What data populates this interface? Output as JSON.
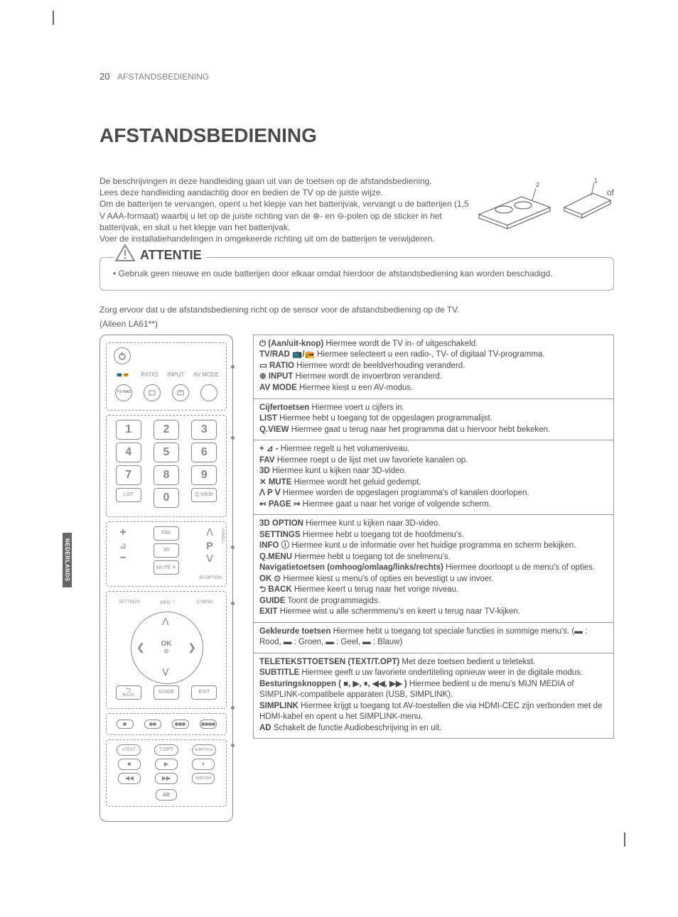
{
  "page_number": "20",
  "header_section": "AFSTANDSBEDIENING",
  "main_title": "AFSTANDSBEDIENING",
  "side_tab": "NEDERLANDS",
  "of_text": "of",
  "intro_text": "De beschrijvingen in deze handleiding gaan uit van de toetsen op de afstandsbediening.\nLees deze handleiding aandachtig door en bedien de TV op de juiste wijze.\nOm de batterijen te vervangen, opent u het klepje van het batterijvak, vervangt u de batterijen (1,5 V AAA-formaat) waarbij u let op de juiste richting van de ⊕- en ⊖-polen op de sticker in het batterijvak, en sluit u het klepje van het batterijvak.\nVoer de installatiehandelingen in omgekeerde richting uit om de batterijen te verwijderen.",
  "attention": {
    "label": "ATTENTIE",
    "body": "Gebruik geen nieuwe en oude batterijen door elkaar omdat hierdoor de afstandsbediening kan worden beschadigd."
  },
  "note1": "Zorg ervoor dat u de afstandsbediening richt op de sensor voor de afstandsbediening op de TV.",
  "note2": "(Alleen LA61**)",
  "remote_labels": {
    "tvrad": "TV/\nRAD",
    "ratio": "RATIO",
    "input": "INPUT",
    "avmode": "AV MODE",
    "list": "LIST",
    "qview": "Q.VIEW",
    "fav": "FAV",
    "threeD": "3D",
    "p": "P",
    "mute": "MUTE ✕",
    "threeD_option": "3D OPTION",
    "settings": "SETTINGS",
    "info": "INFO ⓘ",
    "qmenu": "Q.MENU",
    "ok": "OK",
    "back": "BACK",
    "guide": "GUIDE",
    "exit": "EXIT",
    "text": "TEXT",
    "topt": "T.OPT",
    "subtitle": "SUBTITLE",
    "simplink": "SIMPLINK",
    "ad": "AD"
  },
  "desc_boxes": [
    {
      "lines": [
        {
          "b": "⏻ (Aan/uit-knop)",
          "t": "   Hiermee wordt de TV in- of uitgeschakeld."
        },
        {
          "b": "TV/RAD 📺/📻",
          "t": "   Hiermee selecteert u een radio-, TV- of digitaal TV-programma."
        },
        {
          "b": "▭ RATIO",
          "t": "   Hiermee wordt de beeldverhouding veranderd."
        },
        {
          "b": "⊕ INPUT",
          "t": "   Hiermee wordt de invoerbron veranderd."
        },
        {
          "b": "AV MODE",
          "t": "   Hiermee kiest u een AV-modus."
        }
      ]
    },
    {
      "lines": [
        {
          "b": "Cijfertoetsen",
          "t": "   Hiermee voert u cijfers in."
        },
        {
          "b": "LIST",
          "t": "   Hiermee hebt u toegang tot de opgeslagen programmalijst."
        },
        {
          "b": "Q.VIEW",
          "t": "   Hiermee gaat u terug naar het programma dat u hiervoor hebt bekeken."
        }
      ]
    },
    {
      "lines": [
        {
          "b": "+ ⊿ -",
          "t": "   Hiermee regelt u het volumeniveau."
        },
        {
          "b": "FAV",
          "t": "   Hiermee roept u de lijst met uw favoriete kanalen op."
        },
        {
          "b": "3D",
          "t": "   Hiermee kunt u kijken naar 3D-video."
        },
        {
          "b": "✕ MUTE",
          "t": "   Hiermee wordt het geluid gedempt."
        },
        {
          "b": "ꓥ P ꓦ",
          "t": "   Hiermee worden de opgeslagen programma's of kanalen doorlopen."
        },
        {
          "b": "↢ PAGE ↣",
          "t": "   Hiermee gaat u naar het vorige of volgende scherm."
        }
      ]
    },
    {
      "lines": [
        {
          "b": "3D OPTION",
          "t": "   Hiermee kunt u kijken naar 3D-video."
        },
        {
          "b": "SETTINGS",
          "t": "   Hiermee hebt u toegang tot de hoofdmenu's."
        },
        {
          "b": "INFO ⓘ",
          "t": "   Hiermee kunt u de informatie over het huidige programma en scherm bekijken."
        },
        {
          "b": "Q.MENU",
          "t": "   Hiermee hebt u toegang tot de snelmenu's."
        },
        {
          "b": "Navigatietoetsen (omhoog/omlaag/links/rechts)",
          "t": "   Hiermee doorloopt u de menu's of opties."
        },
        {
          "b": "OK ⊙",
          "t": "   Hiermee kiest u menu's of opties en bevestigt u uw invoer."
        },
        {
          "b": "⮌ BACK",
          "t": "   Hiermee keert u terug naar het vorige niveau."
        },
        {
          "b": "GUIDE",
          "t": "   Toont de programmagids."
        },
        {
          "b": "EXIT",
          "t": "   Hiermee wist u alle schermmenu's en keert u terug naar TV-kijken."
        }
      ]
    },
    {
      "lines": [
        {
          "b": "Gekleurde toetsen",
          "t": "   Hiermee hebt u toegang tot speciale functies in sommige menu's. (▬ : Rood, ▬ : Groen, ▬ : Geel, ▬ : Blauw)"
        }
      ]
    },
    {
      "lines": [
        {
          "b": "TELETEKSTTOETSEN (TEXT/T.OPT)",
          "t": "   Met deze toetsen bedient u teletekst."
        },
        {
          "b": "SUBTITLE",
          "t": "   Hiermee geeft u uw favoriete ondertiteling opnieuw weer in de digitale modus."
        },
        {
          "b": "Besturingsknoppen ( ■, ▶, ⏸, ◀◀, ▶▶ )",
          "t": "   Hiermee bedient u de menu's MIJN MEDIA of SIMPLINK-compatibele apparaten (USB, SIMPLINK)."
        },
        {
          "b": "SIMPLINK",
          "t": "   Hiermee krijgt u toegang tot AV-toestellen die via HDMI-CEC zijn verbonden met de HDMI-kabel en opent u het SIMPLINK-menu."
        },
        {
          "b": "AD",
          "t": "   Schakelt de functie Audiobeschrijving in en uit."
        }
      ]
    }
  ],
  "colors": {
    "text": "#4a4a4a",
    "muted": "#808080",
    "border": "#999999",
    "dash": "#999999"
  }
}
